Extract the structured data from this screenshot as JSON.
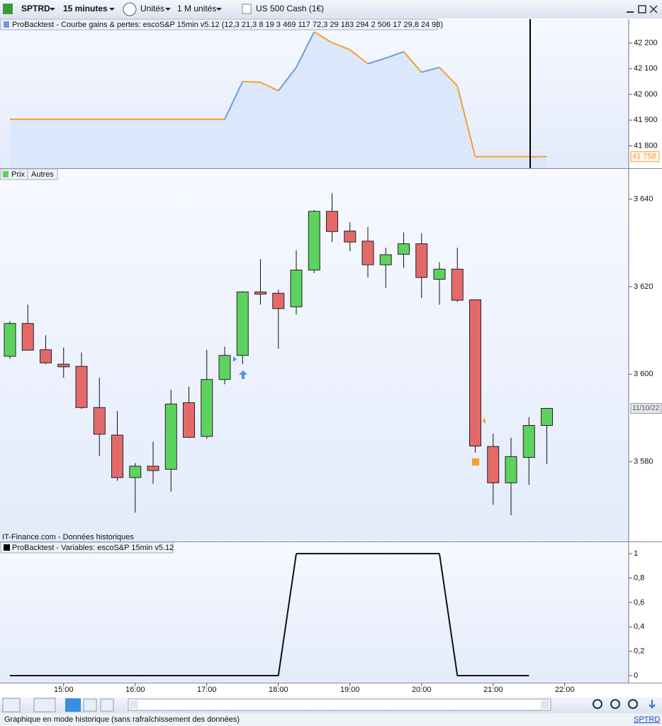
{
  "toolbar": {
    "symbol": "SPTRD",
    "timeframe": "15 minutes",
    "units": "Unités",
    "size": "1 M unités",
    "instrument": "US 500 Cash (1€)"
  },
  "status_bar": {
    "text": "Graphique en mode historique (sans rafraîchissement des données)",
    "symbol": "SPTRD"
  },
  "chart_data": [
    {
      "type": "line",
      "title": "ProBacktest - Courbe gains & pertes: escoS&P 15min v5.12 (12,3 21,3 8 19 3 469 117 72,3 29 183 294 2 506 17 29,8 24 98)",
      "values": [
        41903,
        41903,
        41903,
        41903,
        41903,
        41903,
        41903,
        41903,
        41903,
        41903,
        41903,
        41903,
        41903,
        42050,
        42047,
        42014,
        42105,
        42243,
        42201,
        42174,
        42119,
        42141,
        42166,
        42086,
        42105,
        42033,
        41758,
        41758,
        41758,
        41758,
        41758,
        null
      ],
      "up_color": "#6b9be0",
      "down_color": "#f5a033",
      "fill_color": "#dbe7fa",
      "ylim": [
        41713.1,
        42292.4
      ],
      "yticks": [
        {
          "value": 41800,
          "label": "41 800"
        },
        {
          "value": 41900,
          "label": "41 900"
        },
        {
          "value": 42000,
          "label": "42 000"
        },
        {
          "value": 42100,
          "label": "42 100"
        },
        {
          "value": 42200,
          "label": "42 200"
        }
      ],
      "last_label": {
        "value": 41758,
        "label": "41 758"
      }
    },
    {
      "type": "candlestick",
      "tabs": [
        "Prix",
        "Autres"
      ],
      "source": "IT-Finance.com - Données historiques",
      "open": [
        3604.1,
        3611.6,
        3605.6,
        3602.3,
        3601.8,
        3592.4,
        3586.1,
        3576.4,
        3579.0,
        3578.3,
        3593.5,
        3585.8,
        3598.8,
        3604.3,
        3618.8,
        3618.5,
        3615.4,
        3623.8,
        3637.2,
        3632.7,
        3630.4,
        3625.0,
        3627.4,
        3629.8,
        3621.7,
        3624.0,
        3617.0,
        3583.5,
        3575.2,
        3581.0,
        3588.3,
        null
      ],
      "close": [
        3611.6,
        3605.5,
        3602.6,
        3601.7,
        3592.4,
        3586.3,
        3576.4,
        3579.0,
        3578.0,
        3593.2,
        3585.6,
        3598.8,
        3604.3,
        3618.8,
        3618.3,
        3615.0,
        3623.8,
        3637.2,
        3632.6,
        3630.2,
        3625.0,
        3627.3,
        3629.8,
        3622.1,
        3624.0,
        3616.9,
        3583.6,
        3575.2,
        3581.2,
        3588.3,
        3592.2,
        null
      ],
      "high": [
        3612.1,
        3615.9,
        3608.9,
        3606.1,
        3605.0,
        3599.2,
        3591.6,
        3579.7,
        3584.6,
        3596.4,
        3597.2,
        3605.6,
        3606.3,
        3619.0,
        3626.3,
        3619.3,
        3628.3,
        3637.5,
        3641.3,
        3634.7,
        3633.6,
        3628.9,
        3632.4,
        3632.2,
        3625.6,
        3628.9,
        3617.0,
        3586.4,
        3585.5,
        3590.2,
        3592.2,
        null
      ],
      "low": [
        3603.5,
        3605.5,
        3602.3,
        3599.2,
        3592.1,
        3581.3,
        3575.7,
        3568.4,
        3575.0,
        3573.2,
        3585.4,
        3585.3,
        3597.7,
        3602.3,
        3615.9,
        3605.8,
        3613.6,
        3623.1,
        3630.2,
        3628.1,
        3622.1,
        3619.7,
        3624.3,
        3617.4,
        3615.9,
        3616.5,
        3582.1,
        3570.2,
        3567.8,
        3574.7,
        3579.5,
        null
      ],
      "up_color": "#5ed25e",
      "down_color": "#e46a6a",
      "ylim": [
        3561.8,
        3646.9
      ],
      "yticks": [
        {
          "value": 3580,
          "label": "3 580"
        },
        {
          "value": 3600,
          "label": "3 600"
        },
        {
          "value": 3620,
          "label": "3 620"
        },
        {
          "value": 3640,
          "label": "3 640"
        }
      ],
      "last_label": "11/10/22"
    },
    {
      "type": "line",
      "title": "ProBacktest - Variables: escoS&P 15min v5.12",
      "categories": [
        null,
        null,
        null,
        "15:00",
        null,
        null,
        null,
        "16:00",
        null,
        null,
        null,
        "17:00",
        null,
        null,
        null,
        "18:00",
        null,
        null,
        null,
        "19:00",
        null,
        null,
        null,
        "20:00",
        null,
        null,
        null,
        "21:00",
        null,
        null,
        null,
        "22:00"
      ],
      "values": [
        0,
        0,
        0,
        0,
        0,
        0,
        0,
        0,
        0,
        0,
        0,
        0,
        0,
        0,
        0,
        0,
        1,
        1,
        1,
        1,
        1,
        1,
        1,
        1,
        1,
        0,
        0,
        0,
        0,
        0,
        null,
        null
      ],
      "color": "#111111",
      "ylim": [
        -0.058,
        1.094
      ],
      "yticks": [
        0,
        {
          "value": 0.2,
          "label": "0,2"
        },
        {
          "value": 0.4,
          "label": "0,4"
        },
        {
          "value": 0.6,
          "label": "0,6"
        },
        {
          "value": 0.8,
          "label": "0,8"
        },
        1
      ]
    }
  ]
}
